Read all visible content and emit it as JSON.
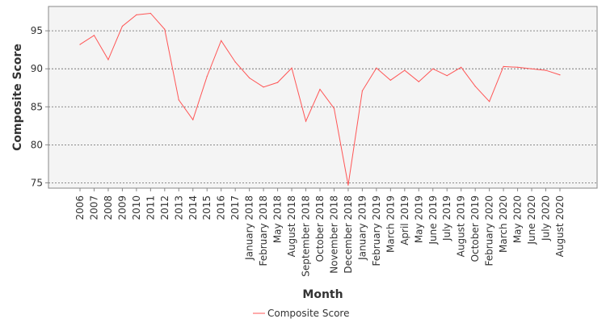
{
  "chart_data": {
    "type": "line",
    "title": "",
    "xlabel": "Month",
    "ylabel": "Composite Score",
    "ylim": [
      74.3,
      98.2
    ],
    "yticks": [
      75,
      80,
      85,
      90,
      95
    ],
    "grid": true,
    "legend_position": "bottom",
    "colors": {
      "line": "#ff5555",
      "plot_background": "#f4f4f4",
      "grid": "#666666",
      "axis": "#888888"
    },
    "categories": [
      "2006",
      "2007",
      "2008",
      "2009",
      "2010",
      "2011",
      "2012",
      "2013",
      "2014",
      "2015",
      "2016",
      "2017",
      "January 2018",
      "February 2018",
      "May 2018",
      "August 2018",
      "September 2018",
      "October 2018",
      "November 2018",
      "December 2018",
      "January 2019",
      "February 2019",
      "March 2019",
      "April 2019",
      "May 2019",
      "June 2019",
      "July 2019",
      "August 2019",
      "October 2019",
      "February 2020",
      "March 2020",
      "May 2020",
      "June 2020",
      "July 2020",
      "August 2020"
    ],
    "series": [
      {
        "name": "Composite Score",
        "values": [
          93.2,
          94.4,
          91.2,
          95.6,
          97.1,
          97.3,
          95.2,
          85.9,
          83.3,
          89.0,
          93.7,
          90.9,
          88.8,
          87.6,
          88.2,
          90.1,
          83.1,
          87.3,
          84.8,
          74.7,
          87.1,
          90.1,
          88.5,
          89.8,
          88.3,
          90.0,
          89.1,
          90.2,
          87.7,
          85.7,
          90.3,
          90.2,
          90.0,
          89.8,
          89.2
        ]
      }
    ]
  }
}
